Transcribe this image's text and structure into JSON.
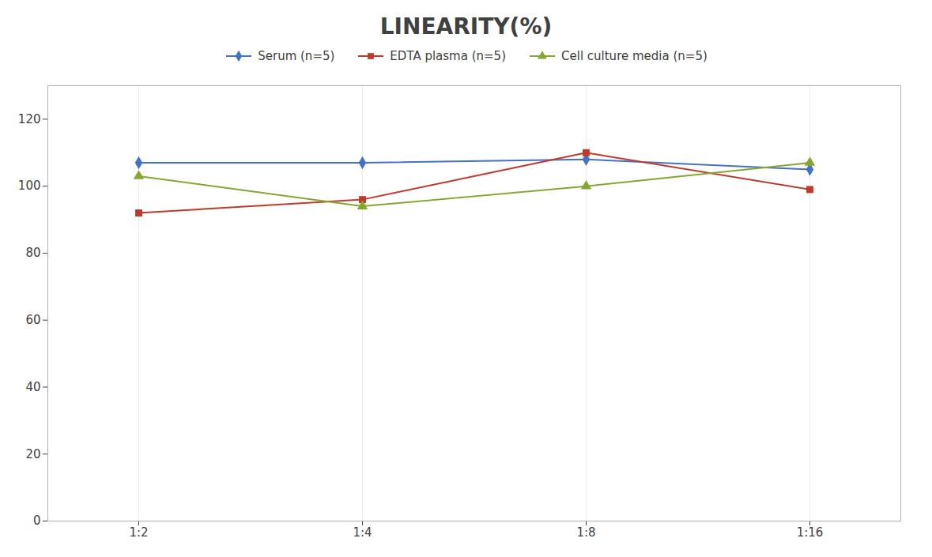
{
  "chart_data": {
    "type": "line",
    "title": "LINEARITY(%)",
    "categories": [
      "1:2",
      "1:4",
      "1:8",
      "1:16"
    ],
    "series": [
      {
        "name": "Serum (n=5)",
        "color": "#4472C4",
        "marker": "diamond",
        "values": [
          107,
          107,
          108,
          105
        ]
      },
      {
        "name": "EDTA plasma (n=5)",
        "color": "#C0392B",
        "marker": "square",
        "values": [
          92,
          96,
          110,
          99
        ]
      },
      {
        "name": "Cell culture media (n=5)",
        "color": "#84A72F",
        "marker": "triangle",
        "values": [
          103,
          94,
          100,
          107
        ]
      }
    ],
    "ylim": [
      0,
      130
    ],
    "yticks": [
      0,
      20,
      40,
      60,
      80,
      100,
      120
    ],
    "grid": "x",
    "legend": "top"
  }
}
